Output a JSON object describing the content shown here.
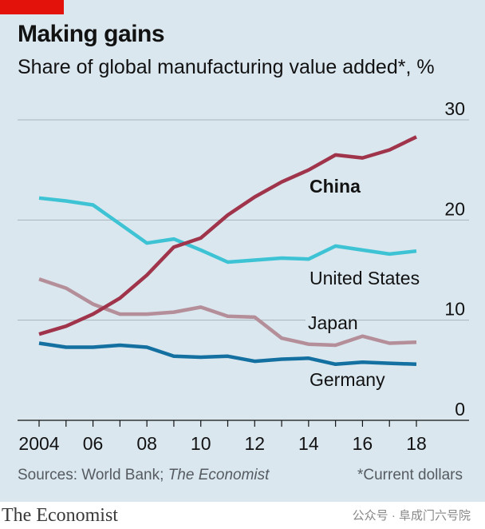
{
  "header": {
    "title": "Making gains",
    "subtitle": "Share of global manufacturing value added*, %"
  },
  "footer": {
    "sources_prefix": "Sources: World Bank; ",
    "sources_italic": "The Economist",
    "note": "*Current dollars"
  },
  "brand": "The Economist",
  "watermark": "公众号 · 阜成门六号院",
  "colors": {
    "background": "#dae7ef",
    "china": "#a0344b",
    "united_states": "#3ec3d5",
    "japan": "#b48e98",
    "germany": "#1370a0",
    "tag": "#e3120b"
  },
  "chart_data": {
    "type": "line",
    "title": "Making gains",
    "subtitle": "Share of global manufacturing value added*, %",
    "xlabel": "",
    "ylabel": "",
    "xlim": [
      2004,
      2018
    ],
    "ylim": [
      0,
      30
    ],
    "x_ticks": [
      2004,
      2006,
      2008,
      2010,
      2012,
      2014,
      2016,
      2018
    ],
    "x_tick_labels": [
      "2004",
      "06",
      "08",
      "10",
      "12",
      "14",
      "16",
      "18"
    ],
    "y_ticks": [
      0,
      10,
      20,
      30
    ],
    "y_tick_labels": [
      "0",
      "10",
      "20",
      "30"
    ],
    "grid": true,
    "x": [
      2004,
      2005,
      2006,
      2007,
      2008,
      2009,
      2010,
      2011,
      2012,
      2013,
      2014,
      2015,
      2016,
      2017,
      2018
    ],
    "series": [
      {
        "name": "China",
        "color": "#a0344b",
        "label_bold": true,
        "values": [
          8.6,
          9.4,
          10.6,
          12.2,
          14.5,
          17.3,
          18.2,
          20.5,
          22.3,
          23.8,
          25.0,
          26.5,
          26.2,
          27.0,
          28.3
        ]
      },
      {
        "name": "United States",
        "color": "#3ec3d5",
        "label_bold": false,
        "values": [
          22.2,
          21.9,
          21.5,
          19.6,
          17.7,
          18.1,
          17.0,
          15.8,
          16.0,
          16.2,
          16.1,
          17.4,
          17.0,
          16.6,
          16.9
        ]
      },
      {
        "name": "Japan",
        "color": "#b48e98",
        "label_bold": false,
        "values": [
          14.1,
          13.2,
          11.6,
          10.6,
          10.6,
          10.8,
          11.3,
          10.4,
          10.3,
          8.2,
          7.6,
          7.5,
          8.4,
          7.7,
          7.8
        ]
      },
      {
        "name": "Germany",
        "color": "#1370a0",
        "label_bold": false,
        "values": [
          7.7,
          7.3,
          7.3,
          7.5,
          7.3,
          6.4,
          6.3,
          6.4,
          5.9,
          6.1,
          6.2,
          5.6,
          5.8,
          5.7,
          5.6
        ]
      }
    ]
  }
}
